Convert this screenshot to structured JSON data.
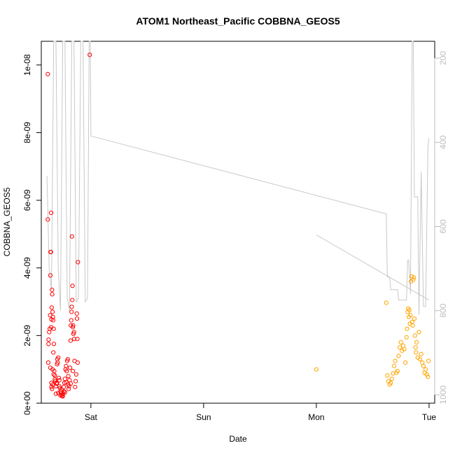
{
  "chart_data": {
    "type": "scatter",
    "title": "ATOM1 Northeast_Pacific COBBNA_GEOS5",
    "xlabel": "Date",
    "ylabel": "COBBNA_GEOS5",
    "x_unit": "days",
    "xlim": [
      -0.44,
      3.05
    ],
    "ylim": [
      0,
      1.07e-08
    ],
    "x_ticks": [
      {
        "value": 0,
        "label": "Sat"
      },
      {
        "value": 1,
        "label": "Sun"
      },
      {
        "value": 2,
        "label": "Mon"
      },
      {
        "value": 3,
        "label": "Tue"
      }
    ],
    "y_ticks": [
      {
        "value": 0,
        "label": "0e+00"
      },
      {
        "value": 2e-09,
        "label": "2e-09"
      },
      {
        "value": 4e-09,
        "label": "4e-09"
      },
      {
        "value": 6e-09,
        "label": "6e-09"
      },
      {
        "value": 8e-09,
        "label": "8e-09"
      },
      {
        "value": 1e-08,
        "label": "1e-08"
      }
    ],
    "right_axis": {
      "label": "",
      "ylim": [
        1020,
        160
      ],
      "reversed": true,
      "color": "#bdbdbd",
      "ticks": [
        {
          "value": 200,
          "label": "200"
        },
        {
          "value": 400,
          "label": "400"
        },
        {
          "value": 600,
          "label": "600"
        },
        {
          "value": 800,
          "label": "800"
        },
        {
          "value": 1000,
          "label": "1000"
        }
      ]
    },
    "grid": false,
    "legend": "none",
    "series": [
      {
        "color": "#ff0000",
        "marker": "open-circle",
        "points": [
          [
            -0.382,
            9.73e-09
          ],
          [
            -0.382,
            5.43e-09
          ],
          [
            -0.378,
            1.2e-09
          ],
          [
            -0.376,
            1.75e-09
          ],
          [
            -0.375,
            1.88e-09
          ],
          [
            -0.37,
            2.1e-09
          ],
          [
            -0.365,
            2.2e-09
          ],
          [
            -0.362,
            2.6e-09
          ],
          [
            -0.36,
            3.78e-09
          ],
          [
            -0.358,
            4.47e-09
          ],
          [
            -0.355,
            4.47e-09
          ],
          [
            -0.353,
            5.63e-09
          ],
          [
            -0.352,
            2.25e-09
          ],
          [
            -0.35,
            2.48e-09
          ],
          [
            -0.348,
            2.83e-09
          ],
          [
            -0.345,
            3.35e-09
          ],
          [
            -0.343,
            3.22e-09
          ],
          [
            -0.34,
            2.7e-09
          ],
          [
            -0.337,
            2.55e-09
          ],
          [
            -0.335,
            2.45e-09
          ],
          [
            -0.333,
            1.5e-09
          ],
          [
            -0.33,
            2.2e-09
          ],
          [
            -0.328,
            1.75e-09
          ],
          [
            -0.35,
            6e-10
          ],
          [
            -0.35,
            4.8e-10
          ],
          [
            -0.345,
            4.2e-10
          ],
          [
            -0.34,
            5.5e-10
          ],
          [
            -0.33,
            8.5e-10
          ],
          [
            -0.325,
            9.5e-10
          ],
          [
            -0.32,
            7e-10
          ],
          [
            -0.315,
            6.5e-10
          ],
          [
            -0.31,
            5e-10
          ],
          [
            -0.305,
            5.8e-10
          ],
          [
            -0.3,
            1.15e-09
          ],
          [
            -0.298,
            1.3e-09
          ],
          [
            -0.295,
            1.2e-09
          ],
          [
            -0.29,
            1.35e-09
          ],
          [
            -0.285,
            7.5e-10
          ],
          [
            -0.28,
            6.8e-10
          ],
          [
            -0.275,
            4.5e-10
          ],
          [
            -0.27,
            3.5e-10
          ],
          [
            -0.265,
            3e-10
          ],
          [
            -0.26,
            2.5e-10
          ],
          [
            -0.255,
            2.2e-10
          ],
          [
            -0.25,
            2e-10
          ],
          [
            -0.245,
            2.8e-10
          ],
          [
            -0.24,
            3.5e-10
          ],
          [
            -0.235,
            6e-10
          ],
          [
            -0.23,
            7.2e-10
          ],
          [
            -0.225,
            1e-09
          ],
          [
            -0.22,
            1.1e-09
          ],
          [
            -0.215,
            9.5e-10
          ],
          [
            -0.21,
            1.25e-09
          ],
          [
            -0.205,
            1.3e-09
          ],
          [
            -0.2,
            5.5e-10
          ],
          [
            -0.198,
            4.2e-10
          ],
          [
            -0.195,
            5e-10
          ],
          [
            -0.19,
            6.8e-10
          ],
          [
            -0.185,
            1.05e-09
          ],
          [
            -0.18,
            1.85e-09
          ],
          [
            -0.178,
            2.3e-09
          ],
          [
            -0.175,
            2.45e-09
          ],
          [
            -0.172,
            2.7e-09
          ],
          [
            -0.17,
            2.85e-09
          ],
          [
            -0.168,
            4.93e-09
          ],
          [
            -0.165,
            3.05e-09
          ],
          [
            -0.163,
            3.47e-09
          ],
          [
            -0.16,
            2.25e-09
          ],
          [
            -0.158,
            2.3e-09
          ],
          [
            -0.155,
            2.05e-09
          ],
          [
            -0.15,
            2.1e-09
          ],
          [
            -0.148,
            1.9e-09
          ],
          [
            -0.145,
            1.25e-09
          ],
          [
            -0.14,
            4.8e-10
          ],
          [
            -0.135,
            6.5e-10
          ],
          [
            -0.13,
            8.5e-10
          ],
          [
            -0.125,
            2.65e-09
          ],
          [
            -0.123,
            2.5e-09
          ],
          [
            -0.12,
            1.9e-09
          ],
          [
            -0.118,
            1.2e-09
          ],
          [
            -0.115,
            4.17e-09
          ],
          [
            -0.01,
            1.03e-08
          ],
          [
            -0.36,
            1.05e-09
          ],
          [
            -0.34,
            1e-09
          ],
          [
            -0.32,
            8.2e-10
          ],
          [
            -0.3,
            6e-10
          ],
          [
            -0.28,
            5e-10
          ],
          [
            -0.26,
            4e-10
          ],
          [
            -0.24,
            4.8e-10
          ],
          [
            -0.22,
            6.2e-10
          ],
          [
            -0.2,
            8e-10
          ],
          [
            -0.18,
            5.8e-10
          ],
          [
            -0.16,
            9.5e-10
          ],
          [
            -0.31,
            2.8e-10
          ],
          [
            -0.29,
            3e-10
          ],
          [
            -0.27,
            2.3e-10
          ],
          [
            -0.23,
            3.2e-10
          ]
        ]
      },
      {
        "color": "#ffa500",
        "marker": "open-circle",
        "points": [
          [
            2.0,
            1e-09
          ],
          [
            2.62,
            2.97e-09
          ],
          [
            2.63,
            8.2e-10
          ],
          [
            2.64,
            6.5e-10
          ],
          [
            2.65,
            5.5e-10
          ],
          [
            2.66,
            6e-10
          ],
          [
            2.67,
            7.2e-10
          ],
          [
            2.68,
            8.8e-10
          ],
          [
            2.69,
            1.1e-09
          ],
          [
            2.7,
            1.25e-09
          ],
          [
            2.71,
            9e-10
          ],
          [
            2.72,
            9.5e-10
          ],
          [
            2.73,
            1.4e-09
          ],
          [
            2.74,
            1.65e-09
          ],
          [
            2.75,
            1.8e-09
          ],
          [
            2.76,
            1.55e-09
          ],
          [
            2.77,
            1.7e-09
          ],
          [
            2.78,
            1.6e-09
          ],
          [
            2.79,
            1.2e-09
          ],
          [
            2.8,
            1.95e-09
          ],
          [
            2.805,
            2.2e-09
          ],
          [
            2.81,
            2.7e-09
          ],
          [
            2.815,
            2.8e-09
          ],
          [
            2.82,
            2.55e-09
          ],
          [
            2.825,
            2.75e-09
          ],
          [
            2.83,
            2.35e-09
          ],
          [
            2.835,
            2.6e-09
          ],
          [
            2.84,
            3.6e-09
          ],
          [
            2.845,
            3.75e-09
          ],
          [
            2.85,
            2.4e-09
          ],
          [
            2.855,
            2.3e-09
          ],
          [
            2.86,
            3.65e-09
          ],
          [
            2.865,
            3.72e-09
          ],
          [
            2.87,
            2.5e-09
          ],
          [
            2.875,
            2e-09
          ],
          [
            2.88,
            1.65e-09
          ],
          [
            2.885,
            1.5e-09
          ],
          [
            2.89,
            1.8e-09
          ],
          [
            2.9,
            1.35e-09
          ],
          [
            2.91,
            2.1e-09
          ],
          [
            2.92,
            1.3e-09
          ],
          [
            2.93,
            1.45e-09
          ],
          [
            2.94,
            1.2e-09
          ],
          [
            2.95,
            1.1e-09
          ],
          [
            2.96,
            9e-10
          ],
          [
            2.97,
            1e-09
          ],
          [
            2.98,
            8.5e-10
          ],
          [
            2.99,
            7.8e-10
          ],
          [
            2.995,
            1.25e-09
          ]
        ]
      },
      {
        "color": "#c8c8c8",
        "marker": "line",
        "axis": "right",
        "segments": [
          [
            [
              -0.39,
              480
            ],
            [
              -0.37,
              700
            ],
            [
              -0.35,
              750
            ],
            [
              -0.33,
              160
            ],
            [
              -0.31,
              160
            ],
            [
              -0.29,
              700
            ],
            [
              -0.27,
              800
            ],
            [
              -0.25,
              160
            ],
            [
              -0.23,
              160
            ],
            [
              -0.21,
              770
            ],
            [
              -0.19,
              800
            ],
            [
              -0.17,
              160
            ],
            [
              -0.15,
              160
            ],
            [
              -0.13,
              780
            ],
            [
              -0.11,
              770
            ],
            [
              -0.09,
              160
            ],
            [
              -0.07,
              160
            ],
            [
              -0.05,
              780
            ],
            [
              -0.03,
              770
            ],
            [
              -0.015,
              160
            ],
            [
              -0.005,
              160
            ],
            [
              0.0,
              385
            ],
            [
              2.62,
              570
            ],
            [
              2.63,
              720
            ],
            [
              2.65,
              720
            ],
            [
              2.66,
              750
            ],
            [
              2.72,
              750
            ],
            [
              2.73,
              775
            ],
            [
              2.8,
              775
            ],
            [
              2.81,
              680
            ],
            [
              2.82,
              680
            ],
            [
              2.835,
              760
            ],
            [
              2.85,
              160
            ],
            [
              2.86,
              160
            ],
            [
              2.87,
              530
            ],
            [
              2.9,
              530
            ],
            [
              2.91,
              810
            ],
            [
              2.93,
              470
            ],
            [
              2.95,
              790
            ],
            [
              2.97,
              790
            ],
            [
              2.99,
              410
            ],
            [
              3.0,
              390
            ]
          ],
          [
            [
              2.0,
              620
            ],
            [
              3.0,
              775
            ]
          ]
        ]
      }
    ]
  }
}
